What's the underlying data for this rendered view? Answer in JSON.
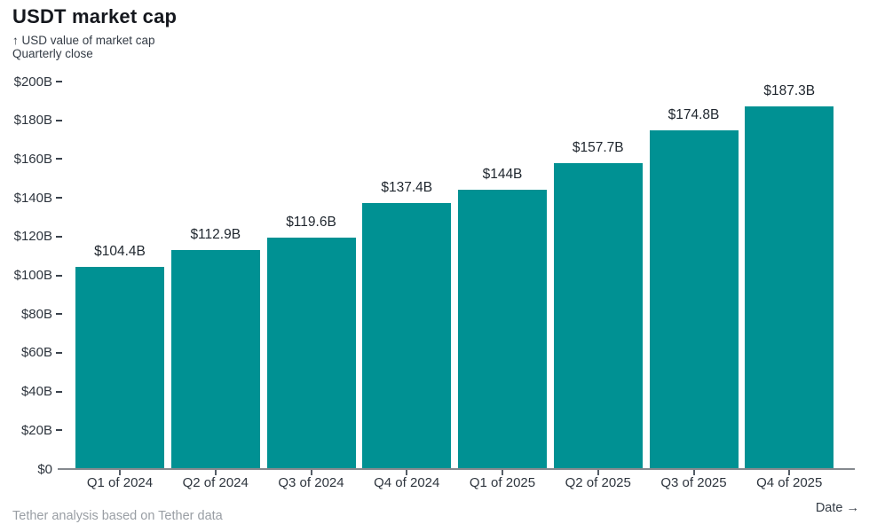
{
  "header": {
    "title": "USDT market cap",
    "subtitle_line1": "↑ USD value of market cap",
    "subtitle_line2": "Quarterly close"
  },
  "footer": {
    "source": "Tether analysis based on Tether data",
    "x_axis_hint": "Date →"
  },
  "chart_data": {
    "type": "bar",
    "title": "USDT market cap",
    "subtitle": "USD value of market cap, quarterly close",
    "categories": [
      "Q1 of 2024",
      "Q2 of 2024",
      "Q3 of 2024",
      "Q4 of 2024",
      "Q1 of 2025",
      "Q2 of 2025",
      "Q3 of 2025",
      "Q4 of 2025"
    ],
    "values": [
      104.4,
      112.9,
      119.6,
      137.4,
      144,
      157.7,
      174.8,
      187.3
    ],
    "value_labels": [
      "$104.4B",
      "$112.9B",
      "$119.6B",
      "$137.4B",
      "$144B",
      "$157.7B",
      "$174.8B",
      "$187.3B"
    ],
    "unit": "billions of USD",
    "xlabel": "Date",
    "ylabel": "USD value of market cap",
    "ylim": [
      0,
      200
    ],
    "y_tick_step": 20,
    "y_tick_labels": [
      "$0",
      "$20B",
      "$40B",
      "$60B",
      "$80B",
      "$100B",
      "$120B",
      "$140B",
      "$160B",
      "$180B",
      "$200B"
    ],
    "grid": false,
    "legend": false,
    "bar_color": "#009193"
  },
  "colors": {
    "bar": "#009193",
    "title_text": "#15181e",
    "axis_text": "#2e353e",
    "axis_line": "#85898e",
    "footer_text": "#999ea4",
    "background": "#ffffff"
  }
}
